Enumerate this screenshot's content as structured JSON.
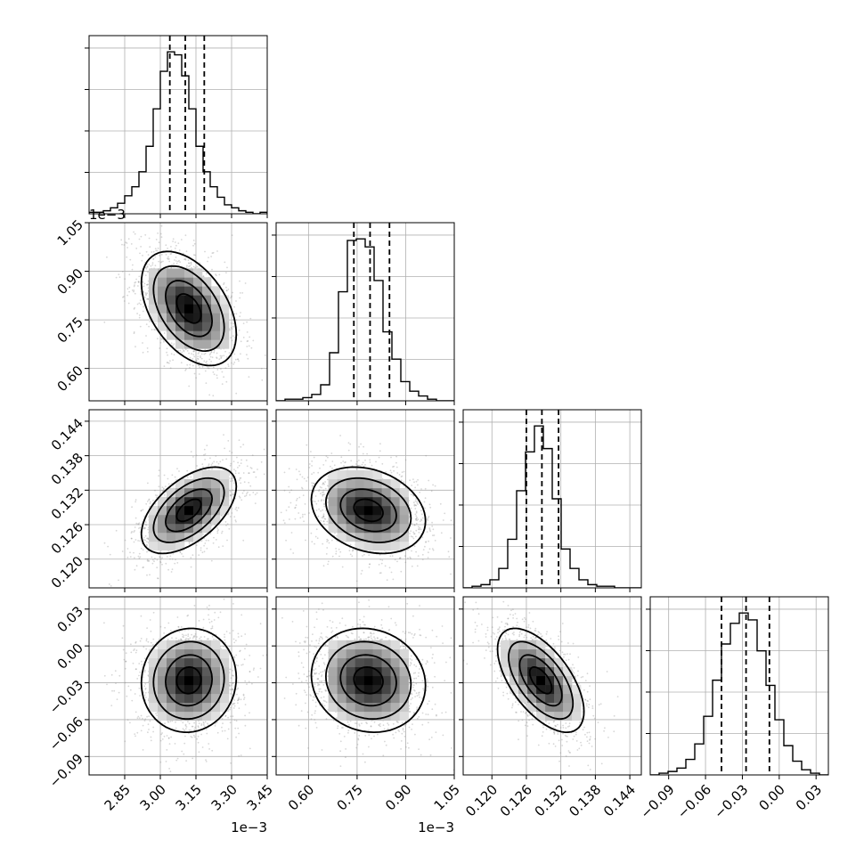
{
  "chart_data": {
    "type": "corner",
    "grid": true,
    "parameters": [
      {
        "range": [
          2.7,
          3.45
        ],
        "ticks": [
          2.85,
          3.0,
          3.15,
          3.3,
          3.45
        ],
        "tick_labels": [
          "2.85",
          "3.00",
          "3.15",
          "3.30",
          "3.45"
        ],
        "offset_label": "1e−3",
        "quantiles": [
          3.04,
          3.105,
          3.185
        ],
        "histogram": {
          "bins": [
            2.7,
            2.73,
            2.76,
            2.79,
            2.82,
            2.85,
            2.88,
            2.91,
            2.94,
            2.97,
            3.0,
            3.03,
            3.06,
            3.09,
            3.12,
            3.15,
            3.18,
            3.21,
            3.24,
            3.27,
            3.3,
            3.33,
            3.36,
            3.39,
            3.42,
            3.45
          ],
          "counts": [
            1,
            1,
            2,
            4,
            7,
            12,
            18,
            28,
            45,
            70,
            95,
            108,
            106,
            92,
            70,
            45,
            28,
            18,
            11,
            6,
            4,
            2,
            1,
            0,
            1
          ]
        }
      },
      {
        "range": [
          0.5,
          1.05
        ],
        "ticks": [
          0.6,
          0.75,
          0.9,
          1.05
        ],
        "tick_labels": [
          "0.60",
          "0.75",
          "0.90",
          "1.05"
        ],
        "offset_label": "1e−3",
        "quantiles": [
          0.74,
          0.79,
          0.85
        ],
        "histogram": {
          "bins": [
            0.5,
            0.5275,
            0.555,
            0.5825,
            0.61,
            0.6375,
            0.665,
            0.6925,
            0.72,
            0.7475,
            0.775,
            0.8025,
            0.83,
            0.8575,
            0.885,
            0.9125,
            0.94,
            0.9675,
            0.995,
            1.0225,
            1.05
          ],
          "counts": [
            0,
            1,
            1,
            2,
            4,
            10,
            30,
            68,
            100,
            101,
            96,
            75,
            43,
            26,
            12,
            6,
            3,
            1,
            0,
            0
          ]
        }
      },
      {
        "range": [
          0.115,
          0.146
        ],
        "ticks": [
          0.12,
          0.126,
          0.132,
          0.138,
          0.144
        ],
        "tick_labels": [
          "0.120",
          "0.126",
          "0.132",
          "0.138",
          "0.144"
        ],
        "offset_label": "",
        "quantiles": [
          0.126,
          0.1287,
          0.1316
        ],
        "histogram": {
          "bins": [
            0.115,
            0.11655,
            0.1181,
            0.11965,
            0.1212,
            0.12275,
            0.1243,
            0.12585,
            0.1274,
            0.12895,
            0.1305,
            0.13205,
            0.1336,
            0.13515,
            0.1367,
            0.13825,
            0.1398,
            0.14135,
            0.1429,
            0.14445,
            0.146
          ],
          "counts": [
            0,
            1,
            2,
            5,
            12,
            30,
            60,
            84,
            100,
            86,
            55,
            24,
            12,
            5,
            2,
            1,
            1,
            0,
            0,
            0
          ]
        }
      },
      {
        "range": [
          -0.105,
          0.04
        ],
        "ticks": [
          -0.09,
          -0.06,
          -0.03,
          0.0,
          0.03
        ],
        "tick_labels": [
          "−0.09",
          "−0.06",
          "−0.03",
          "0.00",
          "0.03"
        ],
        "offset_label": "",
        "quantiles": [
          -0.047,
          -0.027,
          -0.008
        ],
        "histogram": {
          "bins": [
            -0.105,
            -0.09775,
            -0.0905,
            -0.08325,
            -0.076,
            -0.06875,
            -0.0615,
            -0.05425,
            -0.047,
            -0.03975,
            -0.0325,
            -0.02525,
            -0.018,
            -0.01075,
            -0.0035,
            0.00375,
            0.011,
            0.01825,
            0.0255,
            0.03275,
            0.04
          ],
          "counts": [
            0,
            1,
            2,
            4,
            9,
            18,
            34,
            55,
            76,
            88,
            94,
            90,
            72,
            52,
            32,
            17,
            8,
            3,
            1,
            0
          ]
        }
      }
    ],
    "pairs": [
      {
        "row": 1,
        "col": 0,
        "center": [
          3.12,
          0.785
        ],
        "sigma": [
          0.085,
          0.075
        ],
        "rho": -0.45
      },
      {
        "row": 2,
        "col": 0,
        "center": [
          3.12,
          0.1285
        ],
        "sigma": [
          0.085,
          0.0032
        ],
        "rho": 0.55
      },
      {
        "row": 2,
        "col": 1,
        "center": [
          0.785,
          0.1285
        ],
        "sigma": [
          0.075,
          0.0032
        ],
        "rho": -0.25
      },
      {
        "row": 3,
        "col": 0,
        "center": [
          3.12,
          -0.028
        ],
        "sigma": [
          0.085,
          0.018
        ],
        "rho": 0.05
      },
      {
        "row": 3,
        "col": 1,
        "center": [
          0.785,
          -0.028
        ],
        "sigma": [
          0.075,
          0.018
        ],
        "rho": -0.1
      },
      {
        "row": 3,
        "col": 2,
        "center": [
          0.1285,
          -0.028
        ],
        "sigma": [
          0.0032,
          0.018
        ],
        "rho": -0.6
      }
    ]
  }
}
